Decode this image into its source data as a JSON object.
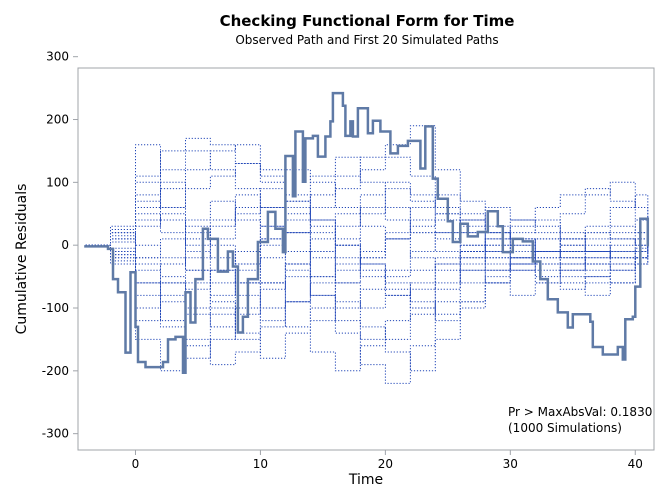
{
  "chart_data": {
    "type": "line",
    "title": "Checking Functional Form for Time",
    "subtitle": "Observed Path and First 20 Simulated Paths",
    "xlabel": "Time",
    "ylabel": "Cumulative Residuals",
    "xlim": [
      -4.6,
      41.5
    ],
    "ylim": [
      -326,
      282
    ],
    "xticks": [
      0,
      10,
      20,
      30,
      40
    ],
    "yticks": [
      -300,
      -200,
      -100,
      0,
      100,
      200,
      300
    ],
    "grid": false,
    "colors": {
      "observed": "#5f7aa6",
      "simulated": "#2348b8",
      "axis": "#a0a4aa"
    },
    "annotation": [
      "Pr > MaxAbsVal: 0.1830",
      "(1000 Simulations)"
    ],
    "observed": {
      "x": [
        -4.1,
        -2.2,
        -1.8,
        -1.4,
        -0.8,
        -0.4,
        0,
        0.2,
        0.8,
        2.2,
        2.6,
        3.2,
        3.8,
        4.0,
        4.4,
        4.8,
        5.4,
        5.8,
        6.6,
        7.4,
        7.8,
        8.2,
        8.6,
        9.0,
        9.8,
        10.6,
        11.2,
        11.8,
        12.0,
        12.6,
        12.8,
        13.4,
        13.6,
        14.2,
        14.6,
        15.2,
        15.6,
        15.8,
        16.6,
        16.8,
        17.2,
        17.4,
        17.8,
        18.6,
        19.0,
        19.6,
        20.4,
        21.0,
        21.8,
        22.8,
        23.2,
        23.8,
        24.2,
        25.0,
        25.4,
        26.0,
        26.6,
        27.4,
        28.2,
        29.0,
        29.4,
        30.2,
        31.0,
        31.8,
        32.4,
        33.0,
        33.8,
        34.6,
        35.0,
        36.4,
        36.6,
        37.4,
        38.6,
        39.0,
        39.2,
        39.8,
        40.0,
        40.4,
        41.0
      ],
      "y": [
        -2,
        -6,
        -54,
        -75,
        -171,
        -43,
        -130,
        -186,
        -194,
        -186,
        -150,
        -146,
        -203,
        -75,
        -123,
        -54,
        26,
        10,
        -42,
        -10,
        -34,
        -139,
        -114,
        -54,
        5,
        53,
        26,
        -11,
        142,
        78,
        181,
        101,
        170,
        174,
        141,
        173,
        197,
        242,
        222,
        174,
        197,
        173,
        218,
        178,
        198,
        181,
        146,
        158,
        166,
        122,
        189,
        106,
        74,
        38,
        5,
        34,
        14,
        21,
        54,
        30,
        -11,
        10,
        6,
        -26,
        -54,
        -86,
        -107,
        -131,
        -110,
        -122,
        -162,
        -174,
        -162,
        -182,
        -118,
        -114,
        -66,
        42,
        -2
      ]
    },
    "simulated_x": [
      -4,
      -2,
      0,
      2,
      4,
      6,
      8,
      10,
      12,
      14,
      16,
      18,
      20,
      22,
      24,
      26,
      28,
      30,
      32,
      34,
      36,
      38,
      40,
      41
    ],
    "simulated": [
      [
        0,
        20,
        -60,
        -120,
        -180,
        -150,
        -100,
        -60,
        -30,
        -80,
        -140,
        -190,
        -220,
        -160,
        -90,
        -40,
        -20,
        0,
        10,
        -10,
        -30,
        -40,
        -20,
        0
      ],
      [
        0,
        -10,
        80,
        120,
        150,
        120,
        90,
        60,
        20,
        -20,
        -60,
        -100,
        -80,
        -60,
        -30,
        -10,
        -30,
        -40,
        -20,
        -10,
        20,
        30,
        20,
        0
      ],
      [
        0,
        30,
        160,
        100,
        -40,
        -90,
        -150,
        -100,
        -50,
        -10,
        30,
        60,
        40,
        20,
        10,
        -20,
        -40,
        -30,
        -10,
        10,
        30,
        60,
        80,
        0
      ],
      [
        0,
        -20,
        -100,
        -60,
        -20,
        10,
        50,
        90,
        120,
        100,
        60,
        30,
        10,
        -20,
        -40,
        -60,
        -40,
        -20,
        -10,
        -30,
        -50,
        -60,
        -30,
        0
      ],
      [
        0,
        10,
        40,
        60,
        90,
        110,
        130,
        110,
        70,
        40,
        0,
        -30,
        -60,
        -90,
        -110,
        -90,
        -60,
        -30,
        -10,
        0,
        -10,
        -20,
        10,
        0
      ],
      [
        0,
        -30,
        -150,
        -200,
        -160,
        -110,
        -60,
        -20,
        20,
        60,
        90,
        120,
        140,
        110,
        60,
        30,
        0,
        -20,
        -30,
        -10,
        10,
        20,
        40,
        0
      ],
      [
        0,
        20,
        100,
        60,
        20,
        -20,
        -60,
        -100,
        -130,
        -170,
        -200,
        -160,
        -120,
        -70,
        -30,
        -10,
        10,
        30,
        40,
        20,
        0,
        -20,
        -10,
        0
      ],
      [
        0,
        -10,
        -40,
        -80,
        -110,
        -80,
        -40,
        10,
        50,
        80,
        110,
        140,
        160,
        190,
        120,
        70,
        30,
        10,
        -10,
        -20,
        -40,
        -30,
        -20,
        0
      ],
      [
        0,
        10,
        0,
        -20,
        -40,
        -60,
        -30,
        10,
        40,
        20,
        -20,
        -50,
        -80,
        -100,
        -60,
        -20,
        10,
        40,
        60,
        80,
        90,
        70,
        40,
        0
      ],
      [
        0,
        -20,
        -80,
        -130,
        -150,
        -190,
        -170,
        -130,
        -90,
        -60,
        -30,
        -10,
        10,
        30,
        50,
        40,
        20,
        -10,
        -30,
        -50,
        -60,
        -40,
        -20,
        0
      ],
      [
        0,
        20,
        60,
        90,
        120,
        150,
        160,
        120,
        80,
        40,
        10,
        -30,
        -50,
        -40,
        -20,
        0,
        20,
        10,
        -10,
        -20,
        -30,
        -10,
        10,
        0
      ],
      [
        0,
        -10,
        -20,
        10,
        40,
        70,
        40,
        0,
        -40,
        -80,
        -120,
        -150,
        -170,
        -200,
        -150,
        -100,
        -60,
        -30,
        -10,
        10,
        20,
        10,
        0,
        0
      ],
      [
        0,
        15,
        50,
        20,
        -10,
        -40,
        -80,
        -120,
        -90,
        -50,
        0,
        50,
        90,
        70,
        40,
        20,
        -10,
        -20,
        -40,
        -60,
        -80,
        -60,
        -30,
        0
      ],
      [
        0,
        -15,
        -60,
        -30,
        10,
        40,
        80,
        60,
        20,
        -10,
        -40,
        -20,
        10,
        40,
        20,
        0,
        -20,
        -40,
        -60,
        -70,
        -50,
        -30,
        -10,
        0
      ],
      [
        0,
        25,
        110,
        150,
        170,
        160,
        130,
        100,
        60,
        30,
        0,
        -40,
        -70,
        -100,
        -120,
        -90,
        -50,
        -20,
        10,
        50,
        80,
        100,
        60,
        0
      ],
      [
        0,
        -25,
        -120,
        -90,
        -60,
        -100,
        -140,
        -180,
        -140,
        -100,
        -60,
        -20,
        20,
        60,
        80,
        50,
        20,
        0,
        -20,
        -40,
        -20,
        0,
        20,
        0
      ],
      [
        0,
        5,
        30,
        50,
        30,
        0,
        -30,
        -60,
        -90,
        -120,
        -100,
        -70,
        -40,
        -10,
        20,
        40,
        60,
        40,
        20,
        0,
        -10,
        -20,
        -10,
        0
      ],
      [
        0,
        -5,
        -30,
        -50,
        -70,
        -40,
        -10,
        30,
        70,
        110,
        140,
        100,
        60,
        20,
        -10,
        -40,
        -60,
        -80,
        -60,
        -40,
        -20,
        -10,
        -5,
        0
      ],
      [
        0,
        10,
        70,
        40,
        0,
        30,
        60,
        30,
        -10,
        -50,
        -90,
        -130,
        -150,
        -110,
        -70,
        -30,
        0,
        20,
        30,
        10,
        -10,
        -30,
        -20,
        0
      ],
      [
        0,
        -15,
        -20,
        -60,
        -100,
        -130,
        -110,
        -70,
        -30,
        10,
        50,
        80,
        100,
        80,
        50,
        20,
        -10,
        -30,
        -50,
        -30,
        -10,
        10,
        0,
        0
      ]
    ]
  }
}
